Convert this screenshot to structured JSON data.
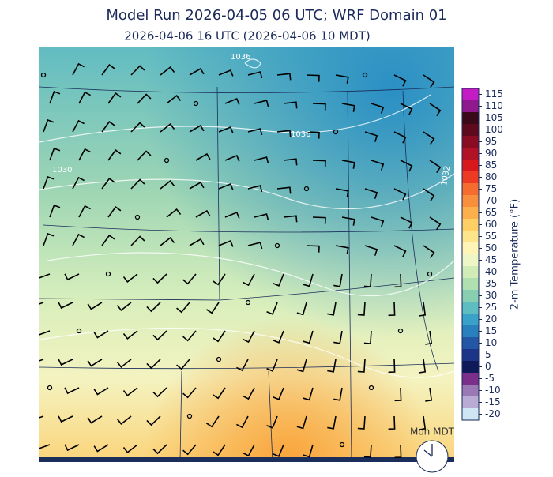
{
  "header": {
    "title": "Model Run 2026-04-05 06 UTC; WRF Domain 01",
    "subtitle": "2026-04-06 16 UTC  (2026-04-06 10 MDT)"
  },
  "map": {
    "contour_labels": [
      "1036",
      "1036",
      "1032",
      "1030"
    ],
    "clock_label": "Mon MDT"
  },
  "colorbar": {
    "label": "2-m Temperature (°F)",
    "clim": [
      -22.5,
      117.5
    ],
    "ticks": [
      115,
      110,
      105,
      100,
      95,
      90,
      85,
      80,
      75,
      70,
      65,
      60,
      55,
      50,
      45,
      40,
      35,
      30,
      25,
      20,
      15,
      10,
      5,
      0,
      -5,
      -10,
      -15,
      -20
    ],
    "colors": [
      "#c51bc5",
      "#8e1a8e",
      "#3a0a1a",
      "#5c0a1c",
      "#8a0c22",
      "#b11226",
      "#d7191c",
      "#ec3b22",
      "#f46d2e",
      "#f88f3c",
      "#fbb04c",
      "#fdcf64",
      "#fde58c",
      "#fdf4b6",
      "#eef6c6",
      "#d2ecb8",
      "#b0dfb0",
      "#87cfb0",
      "#5fbcbf",
      "#3aa1c8",
      "#2a7fbd",
      "#2456a6",
      "#1c3586",
      "#0f1a58",
      "#7b2f8a",
      "#9a78b4",
      "#b9abd4",
      "#cfe6f5"
    ]
  }
}
